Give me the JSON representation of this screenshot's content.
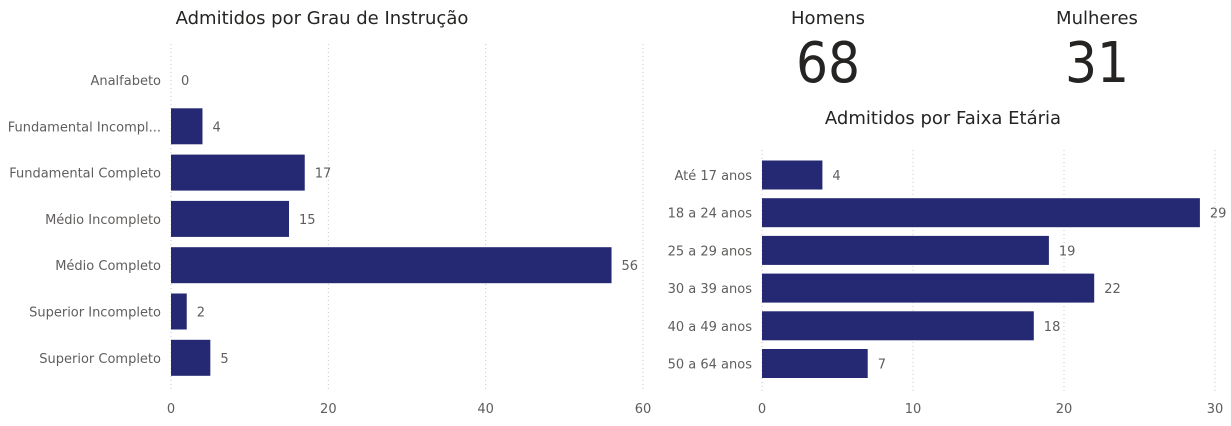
{
  "kpis": [
    {
      "label": "Homens",
      "value": "68"
    },
    {
      "label": "Mulheres",
      "value": "31"
    }
  ],
  "colors": {
    "bar": "#252872"
  },
  "chart_data": [
    {
      "type": "bar",
      "orientation": "horizontal",
      "title": "Admitidos por Grau de Instrução",
      "categories": [
        "Analfabeto",
        "Fundamental Incompl...",
        "Fundamental Completo",
        "Médio Incompleto",
        "Médio Completo",
        "Superior Incompleto",
        "Superior Completo"
      ],
      "values": [
        0,
        4,
        17,
        15,
        56,
        2,
        5
      ],
      "xlim": [
        0,
        60
      ],
      "xticks": [
        0,
        20,
        40,
        60
      ],
      "grid": true
    },
    {
      "type": "bar",
      "orientation": "horizontal",
      "title": "Admitidos por Faixa Etária",
      "categories": [
        "Até 17 anos",
        "18 a 24 anos",
        "25 a 29 anos",
        "30 a 39 anos",
        "40 a 49 anos",
        "50 a 64 anos"
      ],
      "values": [
        4,
        29,
        19,
        22,
        18,
        7
      ],
      "xlim": [
        0,
        30
      ],
      "xticks": [
        0,
        10,
        20,
        30
      ],
      "grid": true
    }
  ]
}
